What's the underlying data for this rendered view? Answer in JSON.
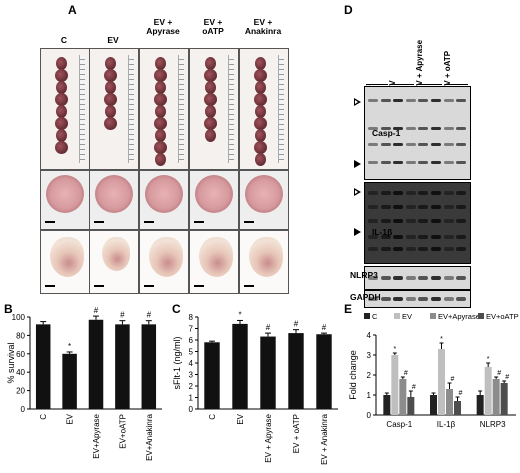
{
  "panels": {
    "a": {
      "letter": "A",
      "columns": [
        "C",
        "EV",
        "EV +\nApyrase",
        "EV +\noATP",
        "EV +\nAnakinra"
      ]
    },
    "b": {
      "letter": "B"
    },
    "c": {
      "letter": "C"
    },
    "d": {
      "letter": "D",
      "lanes": [
        "C",
        "EV",
        "EV + Apyrase",
        "EV + oATP"
      ],
      "blots": [
        "Casp-1",
        "IL-1β",
        "NLRP3",
        "GAPDH"
      ]
    },
    "e": {
      "letter": "E"
    }
  },
  "colors": {
    "bar": "#111111",
    "bar_c": "#222222",
    "bar_ev": "#bfbfbf",
    "bar_apyrase": "#8c8c8c",
    "bar_oatp": "#4d4d4d"
  },
  "chart_data": [
    {
      "type": "bar",
      "ylabel": "% survival",
      "categories": [
        "C",
        "EV",
        "EV+Apyrase",
        "EV+oATP",
        "EV+Anakinra"
      ],
      "values": [
        92,
        60,
        97,
        92,
        92
      ],
      "errors": [
        3,
        2,
        4,
        4,
        4
      ],
      "markers": [
        "",
        "*",
        "#",
        "#",
        "#"
      ],
      "ylim": [
        0,
        100
      ],
      "yticks": [
        0,
        20,
        40,
        60,
        80,
        100
      ]
    },
    {
      "type": "bar",
      "ylabel": "sFlt-1 (ng/ml)",
      "categories": [
        "C",
        "EV",
        "EV + Apyrase",
        "EV + oATP",
        "EV + Anakinra"
      ],
      "values": [
        5.8,
        7.4,
        6.3,
        6.6,
        6.5
      ],
      "errors": [
        0.1,
        0.3,
        0.3,
        0.3,
        0.1
      ],
      "markers": [
        "",
        "*",
        "#",
        "#",
        "#"
      ],
      "ylim": [
        0,
        8
      ],
      "yticks": [
        0,
        1,
        2,
        3,
        4,
        5,
        6,
        7,
        8
      ]
    },
    {
      "type": "bar",
      "ylabel": "Fold change",
      "categories": [
        "Casp-1",
        "IL-1β",
        "NLRP3"
      ],
      "legend": [
        "C",
        "EV",
        "EV+Apyrase",
        "EV+oATP"
      ],
      "series": [
        {
          "name": "C",
          "values": [
            1.0,
            1.0,
            1.0
          ],
          "errors": [
            0.1,
            0.1,
            0.2
          ],
          "markers": [
            "",
            "",
            ""
          ]
        },
        {
          "name": "EV",
          "values": [
            3.0,
            3.3,
            2.4
          ],
          "errors": [
            0.1,
            0.3,
            0.2
          ],
          "markers": [
            "*",
            "*",
            "*"
          ]
        },
        {
          "name": "EV+Apyrase",
          "values": [
            1.8,
            1.3,
            1.8
          ],
          "errors": [
            0.1,
            0.3,
            0.1
          ],
          "markers": [
            "#",
            "#",
            "#"
          ]
        },
        {
          "name": "EV+oATP",
          "values": [
            0.9,
            0.7,
            1.6
          ],
          "errors": [
            0.3,
            0.2,
            0.1
          ],
          "markers": [
            "#",
            "#",
            "#"
          ]
        }
      ],
      "ylim": [
        0,
        4
      ],
      "yticks": [
        0,
        1,
        2,
        3,
        4
      ]
    }
  ]
}
